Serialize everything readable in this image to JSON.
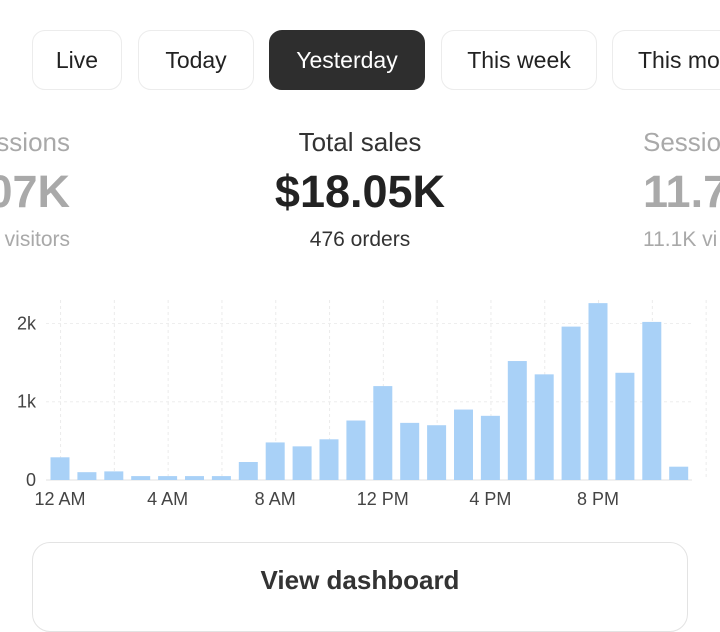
{
  "tabs": [
    {
      "label": "Live",
      "active": false
    },
    {
      "label": "Today",
      "active": false
    },
    {
      "label": "Yesterday",
      "active": true
    },
    {
      "label": "This week",
      "active": false
    },
    {
      "label": "This mo",
      "active": false
    }
  ],
  "metrics": {
    "left": {
      "label": "ssions",
      "value": "07K",
      "sub": "visitors"
    },
    "center": {
      "label": "Total sales",
      "value": "$18.05K",
      "sub": "476 orders"
    },
    "right": {
      "label": "Sessio",
      "value": "11.7",
      "sub": "11.1K vi"
    }
  },
  "colors": {
    "bar": "#a9d1f7",
    "active_tab": "#2e2e2e",
    "faded_text": "#a9a9a9"
  },
  "chart_data": {
    "type": "bar",
    "title": "",
    "xlabel": "",
    "ylabel": "",
    "ylim": [
      0,
      2300
    ],
    "y_ticks": [
      {
        "value": 0,
        "label": "0"
      },
      {
        "value": 1000,
        "label": "1k"
      },
      {
        "value": 2000,
        "label": "2k"
      }
    ],
    "x_ticks": [
      {
        "index": 0,
        "label": "12 AM"
      },
      {
        "index": 4,
        "label": "4 AM"
      },
      {
        "index": 8,
        "label": "8 AM"
      },
      {
        "index": 12,
        "label": "12 PM"
      },
      {
        "index": 16,
        "label": "4 PM"
      },
      {
        "index": 20,
        "label": "8 PM"
      }
    ],
    "categories": [
      "0",
      "1",
      "2",
      "3",
      "4",
      "5",
      "6",
      "7",
      "8",
      "9",
      "10",
      "11",
      "12",
      "13",
      "14",
      "15",
      "16",
      "17",
      "18",
      "19",
      "20",
      "21",
      "22",
      "23"
    ],
    "values": [
      290,
      100,
      110,
      50,
      50,
      50,
      50,
      230,
      480,
      430,
      520,
      760,
      1200,
      730,
      700,
      900,
      820,
      1520,
      1350,
      1960,
      2260,
      1370,
      2020,
      170
    ],
    "grid": true
  },
  "view_dashboard_label": "View dashboard"
}
